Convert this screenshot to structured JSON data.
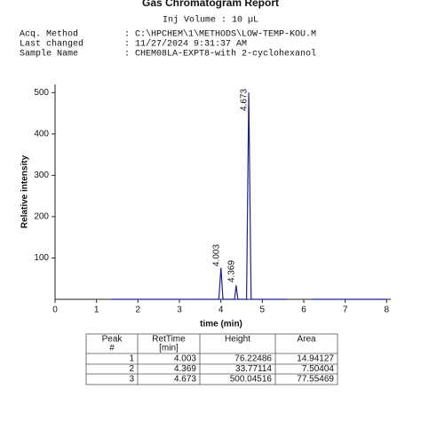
{
  "header": {
    "title": "Gas Chromatogram Report",
    "inj_volume": "Inj Volume : 10 µL",
    "fields": [
      {
        "label": "Acq. Method",
        "value": ": C:\\HPCHEM\\1\\METHODS\\LOW-TEMP-KOU.M"
      },
      {
        "label": "Last changed",
        "value": ": 11/27/2024 9:31:37 AM"
      },
      {
        "label": "Sample Name",
        "value": ": CHEM08LA-EXPT8-with 2-cyclohexanol"
      }
    ]
  },
  "chart_data": {
    "type": "line",
    "x_label": "time (min)",
    "y_label": "Relative intensity",
    "x": [
      1.35,
      3.95,
      4.003,
      4.05,
      4.33,
      4.369,
      4.41,
      4.62,
      4.673,
      4.73,
      5.6,
      5.8,
      6.2,
      8.0
    ],
    "series": [
      {
        "color": "#1f1f8f",
        "values": [
          0,
          0,
          76.22486,
          0,
          0,
          33.77114,
          0,
          0,
          500.04516,
          0,
          0,
          null,
          0,
          0
        ]
      }
    ],
    "peak_labels": [
      4.003,
      4.369,
      4.673
    ],
    "xlim": [
      0,
      8.1
    ],
    "xticks": [
      0,
      1,
      2,
      3,
      4,
      5,
      6,
      7,
      8
    ],
    "ylim": [
      0,
      520
    ],
    "yticks": [
      100,
      200,
      300,
      400,
      500
    ]
  },
  "table": {
    "header": [
      [
        "Peak",
        "#"
      ],
      [
        "RetTime",
        "[min]"
      ],
      [
        "Height"
      ],
      [
        "Area"
      ]
    ],
    "rows": [
      [
        1,
        4.003,
        76.22486,
        14.94127
      ],
      [
        2,
        4.369,
        33.77114,
        7.50404
      ],
      [
        3,
        4.673,
        500.04516,
        77.55469
      ]
    ]
  }
}
